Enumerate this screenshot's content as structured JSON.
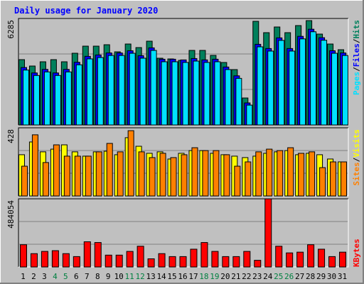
{
  "chart_data": [
    {
      "type": "bar",
      "title": "Daily usage for January 2020",
      "legend_separator": "/",
      "ylim": [
        0,
        6285
      ],
      "yticks": [
        6285
      ],
      "series": [
        {
          "name": "Hits",
          "color": "#00805c",
          "values": [
            3855,
            3478,
            3729,
            3855,
            3729,
            4232,
            4651,
            4651,
            4735,
            4316,
            4777,
            4567,
            4944,
            3939,
            3897,
            3813,
            4400,
            4400,
            4106,
            3687,
            3268,
            1592,
            6117,
            5447,
            5782,
            5447,
            5866,
            6159,
            5363,
            4777,
            4441
          ]
        },
        {
          "name": "Files",
          "color": "#0000ff",
          "values": [
            3390,
            3070,
            3280,
            3070,
            3280,
            3700,
            4050,
            4130,
            4250,
            4250,
            4380,
            4090,
            4550,
            3880,
            3880,
            3840,
            3920,
            3840,
            3880,
            3420,
            2900,
            1300,
            4760,
            4510,
            5140,
            4510,
            5230,
            5650,
            5150,
            4380,
            4250
          ]
        },
        {
          "name": "Pages",
          "color": "#00e0ff",
          "values": [
            3240,
            2920,
            3130,
            2920,
            3130,
            3550,
            3900,
            3980,
            4100,
            4100,
            4230,
            3940,
            4400,
            3730,
            3730,
            3690,
            3770,
            3690,
            3730,
            3270,
            2750,
            1170,
            4610,
            4360,
            4990,
            4360,
            5080,
            5500,
            5000,
            4230,
            4100
          ]
        }
      ]
    },
    {
      "type": "bar",
      "legend_separator": "/",
      "ylim": [
        0,
        428
      ],
      "yticks": [
        428
      ],
      "series": [
        {
          "name": "Visits",
          "color": "#ffff00",
          "values": [
            259,
            339,
            277,
            294,
            321,
            277,
            250,
            277,
            281,
            259,
            366,
            312,
            268,
            277,
            232,
            268,
            285,
            285,
            268,
            259,
            250,
            241,
            250,
            268,
            277,
            285,
            259,
            268,
            259,
            232,
            214
          ]
        },
        {
          "name": "Sites",
          "color": "#ff8000",
          "values": [
            187,
            384,
            210,
            321,
            250,
            250,
            250,
            277,
            330,
            277,
            410,
            277,
            241,
            268,
            241,
            259,
            303,
            285,
            285,
            259,
            187,
            214,
            277,
            294,
            285,
            303,
            268,
            277,
            178,
            214,
            214
          ]
        }
      ]
    },
    {
      "type": "bar",
      "ylim": [
        0,
        484054
      ],
      "yticks": [
        484054
      ],
      "categories": [
        "1",
        "2",
        "3",
        "4",
        "5",
        "6",
        "7",
        "8",
        "9",
        "10",
        "11",
        "12",
        "13",
        "14",
        "15",
        "16",
        "17",
        "18",
        "19",
        "20",
        "21",
        "22",
        "23",
        "24",
        "25",
        "26",
        "27",
        "28",
        "29",
        "30",
        "31"
      ],
      "category_colors": [
        "#000000",
        "#000000",
        "#000000",
        "#008040",
        "#008040",
        "#000000",
        "#000000",
        "#000000",
        "#000000",
        "#000000",
        "#008040",
        "#008040",
        "#000000",
        "#000000",
        "#000000",
        "#000000",
        "#000000",
        "#008040",
        "#008040",
        "#000000",
        "#000000",
        "#000000",
        "#000000",
        "#000000",
        "#008040",
        "#008040",
        "#000000",
        "#000000",
        "#000000",
        "#000000",
        "#000000"
      ],
      "series": [
        {
          "name": "KBytes",
          "color": "#ff0000",
          "values": [
            157830,
            94700,
            110480,
            115740,
            94700,
            73650,
            178870,
            173610,
            84180,
            84180,
            110480,
            147310,
            57870,
            94700,
            73650,
            73650,
            126260,
            173610,
            110480,
            73650,
            73650,
            110480,
            47350,
            484054,
            147310,
            99960,
            105220,
            157830,
            126260,
            73650,
            105220
          ]
        }
      ]
    }
  ]
}
